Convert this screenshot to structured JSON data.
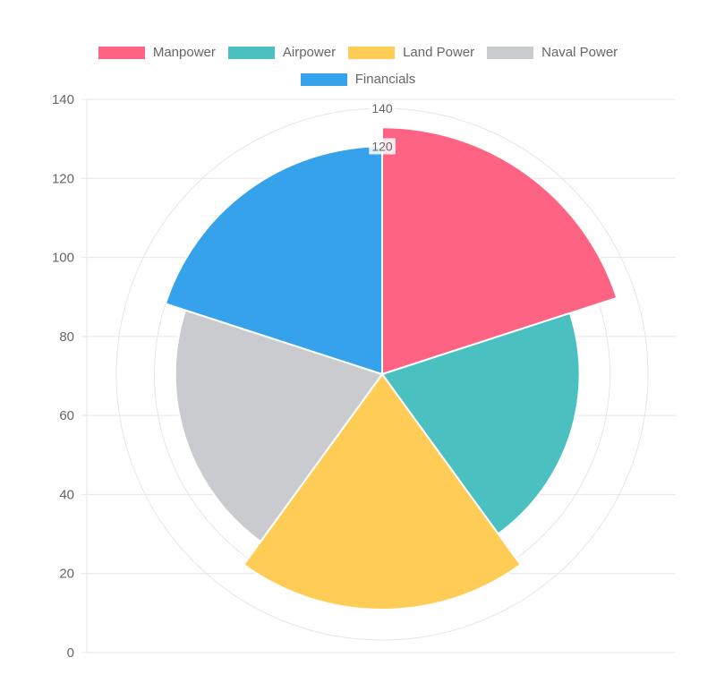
{
  "chart_data": {
    "type": "polarArea",
    "categories": [
      "Manpower",
      "Airpower",
      "Land Power",
      "Naval Power",
      "Financials"
    ],
    "values": [
      130,
      104,
      124,
      109,
      120
    ],
    "colors": [
      "#FF6384",
      "#4BC0C0",
      "#FFCD56",
      "#C9CBCF",
      "#36A2EB"
    ],
    "ylim": [
      0,
      140
    ],
    "y_ticks": [
      0,
      20,
      40,
      60,
      80,
      100,
      120,
      140
    ],
    "radial_tick_labels": [
      "140",
      "120"
    ],
    "grid": true,
    "legend_position": "top"
  }
}
